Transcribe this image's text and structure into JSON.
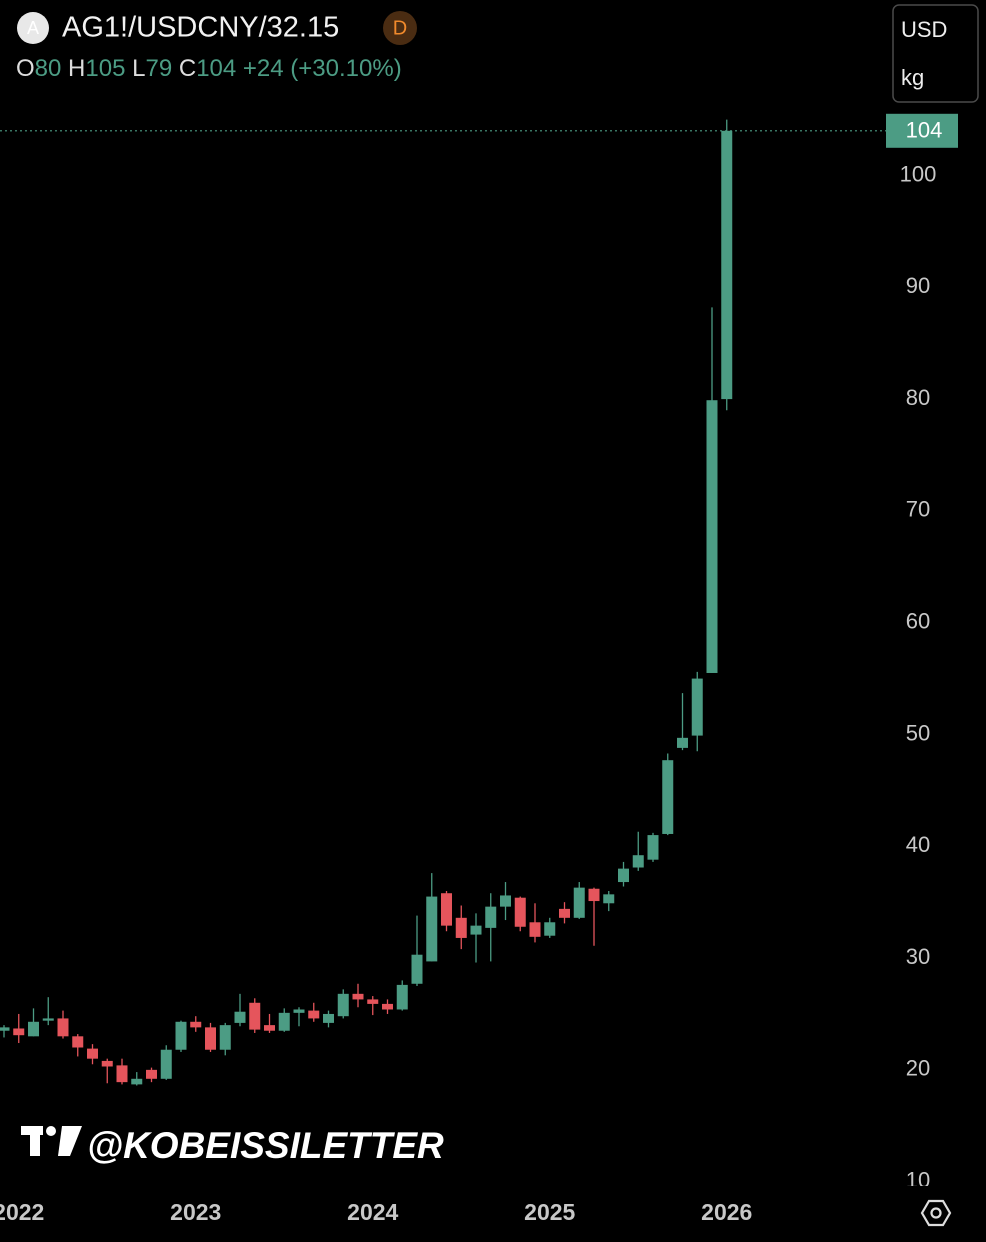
{
  "chart_data": {
    "type": "candlestick",
    "title": "AG1!/USDCNY/32.15",
    "symbol_icon": "A",
    "badge": "D",
    "ohlc_labels": [
      "O",
      "H",
      "L",
      "C"
    ],
    "change_label": "+24 (+30.10%)",
    "unit_labels": [
      "USD",
      "kg"
    ],
    "watermark": "@KOBEISSILETTER",
    "up_color": "#4c9c84",
    "down_color": "#e5555c",
    "last_price_line": true,
    "categories": [
      null,
      "2022",
      null,
      null,
      null,
      null,
      null,
      null,
      null,
      null,
      null,
      null,
      null,
      "2023",
      null,
      null,
      null,
      null,
      null,
      null,
      null,
      null,
      null,
      null,
      null,
      "2024",
      null,
      null,
      null,
      null,
      null,
      null,
      null,
      null,
      null,
      null,
      null,
      "2025",
      null,
      null,
      null,
      null,
      null,
      null,
      null,
      null,
      null,
      null,
      null,
      "2026"
    ],
    "open": [
      23.5,
      23.7,
      23.0,
      24.4,
      24.6,
      23.0,
      21.9,
      20.8,
      20.4,
      18.7,
      20.0,
      19.2,
      21.8,
      24.3,
      23.8,
      21.8,
      24.2,
      26.0,
      24.0,
      23.5,
      25.1,
      25.3,
      24.2,
      24.8,
      26.8,
      26.3,
      25.9,
      25.4,
      27.7,
      29.7,
      35.8,
      33.6,
      32.1,
      32.7,
      34.6,
      35.4,
      33.2,
      32.0,
      34.4,
      33.6,
      36.2,
      34.9,
      36.8,
      38.1,
      38.8,
      41.1,
      48.8,
      49.9,
      55.5,
      80
    ],
    "high": [
      24.0,
      25.0,
      25.5,
      26.5,
      25.3,
      23.2,
      22.3,
      21.0,
      21.0,
      19.8,
      20.2,
      22.2,
      24.4,
      24.8,
      24.2,
      24.2,
      26.8,
      26.4,
      25.0,
      25.5,
      25.6,
      26.0,
      25.3,
      27.2,
      27.7,
      26.6,
      26.3,
      28.0,
      33.8,
      37.6,
      36.0,
      34.7,
      34.0,
      35.8,
      36.8,
      35.5,
      34.9,
      33.6,
      35.0,
      36.8,
      36.3,
      36.0,
      38.6,
      41.3,
      41.2,
      48.3,
      53.7,
      55.6,
      88.2,
      105
    ],
    "low": [
      22.9,
      22.4,
      23.0,
      24.0,
      22.8,
      21.2,
      20.5,
      18.8,
      18.7,
      18.6,
      18.9,
      19.1,
      21.6,
      23.4,
      21.6,
      21.3,
      23.9,
      23.3,
      23.3,
      23.4,
      23.9,
      24.3,
      23.8,
      24.6,
      25.6,
      24.9,
      25.0,
      25.3,
      27.5,
      29.7,
      32.4,
      30.8,
      29.6,
      29.7,
      33.4,
      32.4,
      31.4,
      31.8,
      33.1,
      33.5,
      31.1,
      34.2,
      36.4,
      37.8,
      38.6,
      41.0,
      48.6,
      48.5,
      55.5,
      79
    ],
    "close": [
      23.8,
      23.1,
      24.3,
      24.6,
      23.0,
      22.0,
      21.0,
      20.3,
      18.9,
      19.2,
      19.2,
      21.8,
      24.3,
      23.8,
      21.8,
      24.0,
      25.2,
      23.6,
      23.5,
      25.1,
      25.4,
      24.6,
      25.0,
      26.8,
      26.3,
      25.9,
      25.4,
      27.6,
      30.3,
      35.5,
      32.9,
      31.8,
      32.9,
      34.6,
      35.6,
      32.8,
      31.9,
      33.2,
      33.6,
      36.3,
      35.1,
      35.7,
      38.0,
      39.2,
      41.0,
      47.7,
      49.7,
      55.0,
      79.9,
      104
    ],
    "ylim": [
      9.7,
      115.7
    ],
    "yticks": [
      10,
      20,
      30,
      40,
      50,
      60,
      70,
      80,
      90,
      100
    ]
  }
}
